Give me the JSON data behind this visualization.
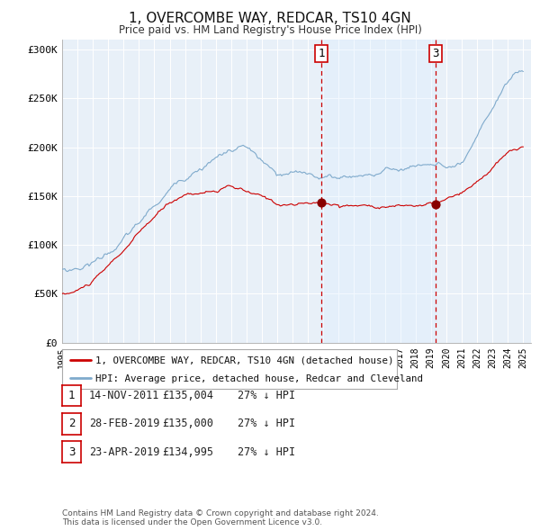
{
  "title": "1, OVERCOMBE WAY, REDCAR, TS10 4GN",
  "subtitle": "Price paid vs. HM Land Registry's House Price Index (HPI)",
  "background_color": "#ffffff",
  "plot_bg_color": "#e8f0f8",
  "grid_color": "#ffffff",
  "red_line_color": "#cc0000",
  "blue_line_color": "#7faacc",
  "sale_marker_color": "#880000",
  "dashed_line_color": "#cc0000",
  "span_color": "#ddeeff",
  "ylim": [
    0,
    310000
  ],
  "yticks": [
    0,
    50000,
    100000,
    150000,
    200000,
    250000,
    300000
  ],
  "ytick_labels": [
    "£0",
    "£50K",
    "£100K",
    "£150K",
    "£200K",
    "£250K",
    "£300K"
  ],
  "legend_red_label": "1, OVERCOMBE WAY, REDCAR, TS10 4GN (detached house)",
  "legend_blue_label": "HPI: Average price, detached house, Redcar and Cleveland",
  "table_rows": [
    {
      "num": "1",
      "date": "14-NOV-2011",
      "price": "£135,004",
      "hpi": "27% ↓ HPI"
    },
    {
      "num": "2",
      "date": "28-FEB-2019",
      "price": "£135,000",
      "hpi": "27% ↓ HPI"
    },
    {
      "num": "3",
      "date": "23-APR-2019",
      "price": "£134,995",
      "hpi": "27% ↓ HPI"
    }
  ],
  "footnote1": "Contains HM Land Registry data © Crown copyright and database right 2024.",
  "footnote2": "This data is licensed under the Open Government Licence v3.0.",
  "sale1_date_num": 2011.87,
  "sale1_price": 135004,
  "sale2_date_num": 2019.16,
  "sale2_price": 135000,
  "sale3_date_num": 2019.3,
  "sale3_price": 134995,
  "xmin": 1995.0,
  "xmax": 2025.5
}
